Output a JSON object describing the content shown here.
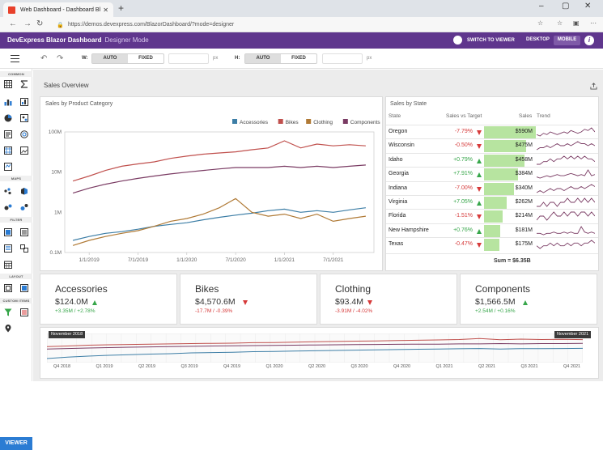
{
  "browser": {
    "tab_title": "Web Dashboard - Dashboard Bl",
    "url": "https://demos.devexpress.com/BlazorDashboard/?mode=designer"
  },
  "header": {
    "title": "DevExpress Blazor Dashboard",
    "mode": "Designer Mode",
    "switch_label": "SWITCH TO VIEWER",
    "desktop_label": "DESKTOP",
    "mobile_label": "MOBILE",
    "info_label": "i"
  },
  "toolbar": {
    "w_label": "W:",
    "h_label": "H:",
    "auto_label": "AUTO",
    "fixed_label": "FIXED",
    "px_label": "px"
  },
  "sidebar": {
    "common_label": "COMMON",
    "maps_label": "MAPS",
    "filter_label": "FILTER",
    "layout_label": "LAYOUT",
    "custom_label": "CUSTOM ITEMS",
    "viewer_button": "VIEWER"
  },
  "dashboard": {
    "title": "Sales Overview"
  },
  "category_chart": {
    "title": "Sales by Product Category"
  },
  "chart_data": {
    "type": "line",
    "title": "Sales by Product Category",
    "ylabel": "",
    "xlabel": "",
    "yscale": "log",
    "yticks": [
      "100M",
      "10M",
      "1M",
      "0.1M"
    ],
    "xticks": [
      "1/1/2019",
      "7/1/2019",
      "1/1/2020",
      "7/1/2020",
      "1/1/2021",
      "7/1/2021"
    ],
    "legend": "top-right",
    "series": [
      {
        "name": "Accessories",
        "color": "#3d7ea6",
        "x": [
          "11/2018",
          "1/2019",
          "3/2019",
          "5/2019",
          "7/2019",
          "9/2019",
          "11/2019",
          "1/2020",
          "3/2020",
          "5/2020",
          "7/2020",
          "9/2020",
          "11/2020",
          "1/2021",
          "3/2021",
          "5/2021",
          "7/2021",
          "9/2021",
          "11/2021"
        ],
        "values": [
          0.2,
          0.25,
          0.3,
          0.33,
          0.38,
          0.45,
          0.5,
          0.55,
          0.65,
          0.75,
          0.85,
          0.95,
          1.1,
          1.2,
          1.0,
          1.1,
          1.0,
          1.15,
          1.3
        ]
      },
      {
        "name": "Bikes",
        "color": "#c0504d",
        "x": [
          "11/2018",
          "1/2019",
          "3/2019",
          "5/2019",
          "7/2019",
          "9/2019",
          "11/2019",
          "1/2020",
          "3/2020",
          "5/2020",
          "7/2020",
          "9/2020",
          "11/2020",
          "1/2021",
          "3/2021",
          "5/2021",
          "7/2021",
          "9/2021",
          "11/2021"
        ],
        "values": [
          6,
          8,
          11,
          14,
          16,
          18,
          22,
          25,
          28,
          30,
          32,
          36,
          40,
          60,
          40,
          50,
          45,
          48,
          45
        ]
      },
      {
        "name": "Clothing",
        "color": "#b07a36",
        "x": [
          "11/2018",
          "1/2019",
          "3/2019",
          "5/2019",
          "7/2019",
          "9/2019",
          "11/2019",
          "1/2020",
          "3/2020",
          "5/2020",
          "7/2020",
          "9/2020",
          "11/2020",
          "1/2021",
          "3/2021",
          "5/2021",
          "7/2021",
          "9/2021",
          "11/2021"
        ],
        "values": [
          0.15,
          0.2,
          0.25,
          0.3,
          0.35,
          0.45,
          0.6,
          0.7,
          0.9,
          1.3,
          2.2,
          1.0,
          0.8,
          0.9,
          0.7,
          0.9,
          0.6,
          0.7,
          0.8
        ]
      },
      {
        "name": "Components",
        "color": "#7a3b63",
        "x": [
          "11/2018",
          "1/2019",
          "3/2019",
          "5/2019",
          "7/2019",
          "9/2019",
          "11/2019",
          "1/2020",
          "3/2020",
          "5/2020",
          "7/2020",
          "9/2020",
          "11/2020",
          "1/2021",
          "3/2021",
          "5/2021",
          "7/2021",
          "9/2021",
          "11/2021"
        ],
        "values": [
          3,
          4,
          5,
          6,
          7,
          8,
          9,
          10,
          11,
          12,
          13,
          13,
          13,
          14,
          13,
          14,
          13,
          14,
          15
        ]
      }
    ]
  },
  "state_grid": {
    "title": "Sales by State",
    "columns": [
      "State",
      "Sales vs Target",
      "Sales",
      "Trend"
    ],
    "rows": [
      {
        "state": "Oregon",
        "pct": "-7.79%",
        "dir": "down",
        "sales": "$590M",
        "share": 1.0,
        "trend": [
          5,
          4,
          6,
          5,
          7,
          6,
          5,
          6,
          7,
          6,
          8,
          7,
          6,
          7,
          9,
          8,
          10,
          7
        ]
      },
      {
        "state": "Wisconsin",
        "pct": "-0.50%",
        "dir": "down",
        "sales": "$475M",
        "share": 0.805,
        "trend": [
          4,
          5,
          5,
          6,
          5,
          6,
          7,
          6,
          6,
          7,
          6,
          7,
          8,
          7,
          7,
          6,
          7,
          6
        ]
      },
      {
        "state": "Idaho",
        "pct": "+0.79%",
        "dir": "up",
        "sales": "$458M",
        "share": 0.776,
        "trend": [
          4,
          4,
          5,
          5,
          6,
          5,
          6,
          6,
          7,
          6,
          7,
          6,
          7,
          6,
          7,
          6,
          6,
          5
        ]
      },
      {
        "state": "Georgia",
        "pct": "+7.91%",
        "dir": "up",
        "sales": "$384M",
        "share": 0.651,
        "trend": [
          5,
          4,
          5,
          6,
          5,
          6,
          7,
          6,
          6,
          7,
          8,
          7,
          6,
          7,
          6,
          11,
          6,
          7
        ]
      },
      {
        "state": "Indiana",
        "pct": "-7.00%",
        "dir": "down",
        "sales": "$340M",
        "share": 0.576,
        "trend": [
          4,
          5,
          4,
          5,
          6,
          5,
          6,
          6,
          5,
          6,
          7,
          6,
          6,
          7,
          6,
          7,
          8,
          7
        ]
      },
      {
        "state": "Virginia",
        "pct": "+7.05%",
        "dir": "up",
        "sales": "$262M",
        "share": 0.444,
        "trend": [
          5,
          5,
          6,
          5,
          6,
          6,
          5,
          6,
          6,
          7,
          6,
          6,
          7,
          6,
          7,
          6,
          7,
          6
        ]
      },
      {
        "state": "Florida",
        "pct": "-1.51%",
        "dir": "down",
        "sales": "$214M",
        "share": 0.363,
        "trend": [
          4,
          5,
          5,
          4,
          5,
          6,
          5,
          5,
          6,
          5,
          6,
          6,
          5,
          6,
          6,
          5,
          6,
          5
        ]
      },
      {
        "state": "New Hampshire",
        "pct": "+0.76%",
        "dir": "up",
        "sales": "$181M",
        "share": 0.307,
        "trend": [
          5,
          5,
          4,
          5,
          5,
          6,
          5,
          5,
          6,
          5,
          6,
          5,
          5,
          10,
          6,
          5,
          6,
          5
        ]
      },
      {
        "state": "Texas",
        "pct": "-0.47%",
        "dir": "down",
        "sales": "$175M",
        "share": 0.297,
        "trend": [
          5,
          4,
          5,
          5,
          6,
          5,
          6,
          5,
          5,
          6,
          5,
          6,
          6,
          5,
          6,
          6,
          7,
          6
        ]
      }
    ],
    "total": "Sum = $6.35B"
  },
  "cards": [
    {
      "name": "Accessories",
      "value": "$124.0M",
      "delta": "+3.35M / +2.78%",
      "dir": "up"
    },
    {
      "name": "Bikes",
      "value": "$4,570.6M",
      "delta": "-17.7M / -0.39%",
      "dir": "down"
    },
    {
      "name": "Clothing",
      "value": "$93.4M",
      "delta": "-3.91M / -4.02%",
      "dir": "down"
    },
    {
      "name": "Components",
      "value": "$1,566.5M",
      "delta": "+2.54M / +0.16%",
      "dir": "up"
    }
  ],
  "range": {
    "start_label": "November 2018",
    "end_label": "November 2021",
    "ticks": [
      "Q4 2018",
      "Q1 2019",
      "Q2 2019",
      "Q3 2019",
      "Q4 2019",
      "Q1 2020",
      "Q2 2020",
      "Q3 2020",
      "Q4 2020",
      "Q1 2021",
      "Q2 2021",
      "Q3 2021",
      "Q4 2021"
    ],
    "series": [
      {
        "color": "#c0504d",
        "values": [
          6,
          7,
          9,
          10,
          11,
          12,
          13,
          14,
          15,
          16,
          18,
          19,
          21,
          24,
          26,
          28,
          30,
          33,
          36,
          40,
          45,
          60,
          42,
          50,
          45,
          48,
          44
        ]
      },
      {
        "color": "#7a3b63",
        "values": [
          3,
          3.5,
          4,
          4.5,
          5,
          5.5,
          6,
          6.5,
          7,
          7.5,
          8,
          8.5,
          9,
          9.5,
          10,
          10.5,
          11,
          11.5,
          12,
          12,
          13,
          13,
          14,
          13,
          14,
          14,
          15
        ]
      },
      {
        "color": "#3d7ea6",
        "values": [
          0.2,
          0.3,
          0.4,
          0.5,
          0.6,
          0.7,
          0.8,
          1,
          1.1,
          1.2,
          1.4,
          1.5,
          1.7,
          1.8,
          2,
          2.2,
          2.4,
          2.6,
          2.8,
          3,
          3.2,
          3.5,
          3,
          3.3,
          3.4,
          3.5,
          3.6
        ]
      }
    ]
  }
}
